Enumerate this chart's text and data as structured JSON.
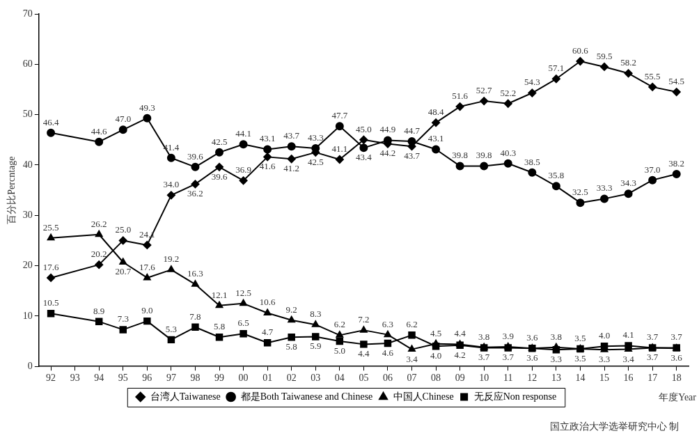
{
  "chart_data": {
    "type": "line",
    "xlabel": "年度Year",
    "ylabel": "百分比Percntage",
    "categories": [
      "92",
      "93",
      "94",
      "95",
      "96",
      "97",
      "98",
      "99",
      "00",
      "01",
      "02",
      "03",
      "04",
      "05",
      "06",
      "07",
      "08",
      "09",
      "10",
      "11",
      "12",
      "13",
      "14",
      "15",
      "16",
      "17",
      "18"
    ],
    "ylim": [
      0,
      70
    ],
    "yticks": [
      0,
      10,
      20,
      30,
      40,
      50,
      60,
      70
    ],
    "grid": false,
    "legend": "bottom",
    "series": [
      {
        "name": "台湾人Taiwanese",
        "color": "#000000",
        "marker": "diamond",
        "values": [
          17.6,
          null,
          20.2,
          25.0,
          24.1,
          34.0,
          36.2,
          39.6,
          36.9,
          41.6,
          41.2,
          42.5,
          41.1,
          45.0,
          44.2,
          43.7,
          48.4,
          51.6,
          52.7,
          52.2,
          54.3,
          57.1,
          60.6,
          59.5,
          58.2,
          55.5,
          54.5
        ],
        "value_labels": [
          "17.6",
          null,
          "20.2",
          "25.0",
          "24.1",
          "34.0",
          "36.2",
          "39.6",
          "36.9",
          "41.6",
          "41.2",
          "42.5",
          "41.1",
          "45.0",
          "44.2",
          "43.7",
          "48.4",
          "51.6",
          "52.7",
          "52.2",
          "54.3",
          "57.1",
          "60.6",
          "59.5",
          "58.2",
          "55.5",
          "54.5"
        ]
      },
      {
        "name": "都是Both Taiwanese and Chinese",
        "color": "#000000",
        "marker": "circle",
        "values": [
          46.4,
          null,
          44.6,
          47.0,
          49.3,
          41.4,
          39.6,
          42.5,
          44.1,
          43.1,
          43.7,
          43.3,
          47.7,
          43.4,
          44.9,
          44.7,
          43.1,
          39.8,
          39.8,
          40.3,
          38.5,
          35.8,
          32.5,
          33.3,
          34.3,
          37.0,
          38.2
        ],
        "value_labels": [
          "46.4",
          null,
          "44.6",
          "47.0",
          "49.3",
          "41.4",
          "39.6",
          "42.5",
          "44.1",
          "43.1",
          "43.7",
          "43.3",
          "47.7",
          "43.4",
          "44.9",
          "44.7",
          "43.1",
          "39.8",
          "39.8",
          "40.3",
          "38.5",
          "35.8",
          "32.5",
          "33.3",
          "34.3",
          "37.0",
          "38.2"
        ]
      },
      {
        "name": "中国人Chinese",
        "color": "#000000",
        "marker": "triangle",
        "values": [
          25.5,
          null,
          26.2,
          20.7,
          17.6,
          19.2,
          16.3,
          12.1,
          12.5,
          10.6,
          9.2,
          8.3,
          6.2,
          7.2,
          6.3,
          3.4,
          4.5,
          4.4,
          3.8,
          3.9,
          3.6,
          3.8,
          3.5,
          3.3,
          3.4,
          3.7,
          3.6
        ],
        "value_labels": [
          "25.5",
          null,
          "26.2",
          "20.7",
          "17.6",
          "19.2",
          "16.3",
          "12.1",
          "12.5",
          "10.6",
          "9.2",
          "8.3",
          "6.2",
          "7.2",
          "6.3",
          "3.4",
          "4.5",
          "4.4",
          "3.8",
          "3.9",
          "3.6",
          "3.8",
          "3.5",
          "3.3",
          "3.4",
          "3.7",
          "3.6"
        ]
      },
      {
        "name": "无反应Non response",
        "color": "#000000",
        "marker": "square",
        "values": [
          10.5,
          null,
          8.9,
          7.3,
          9.0,
          5.3,
          7.8,
          5.8,
          6.5,
          4.7,
          5.8,
          5.9,
          5.0,
          4.4,
          4.6,
          6.2,
          4.0,
          4.2,
          3.7,
          3.7,
          3.6,
          3.3,
          3.5,
          4.0,
          4.1,
          3.7,
          3.7
        ],
        "value_labels": [
          "10.5",
          null,
          "8.9",
          "7.3",
          "9.0",
          "5.3",
          "7.8",
          "5.8",
          "6.5",
          "4.7",
          "5.8",
          "5.9",
          "5.0",
          "4.4",
          "4.6",
          "6.2",
          "4.0",
          "4.2",
          "3.7",
          "3.7",
          "3.6",
          "3.3",
          "3.5",
          "4.0",
          "4.1",
          "3.7",
          "3.7"
        ]
      }
    ],
    "annotations": [
      "国立政治大学选举研究中心 制"
    ]
  }
}
